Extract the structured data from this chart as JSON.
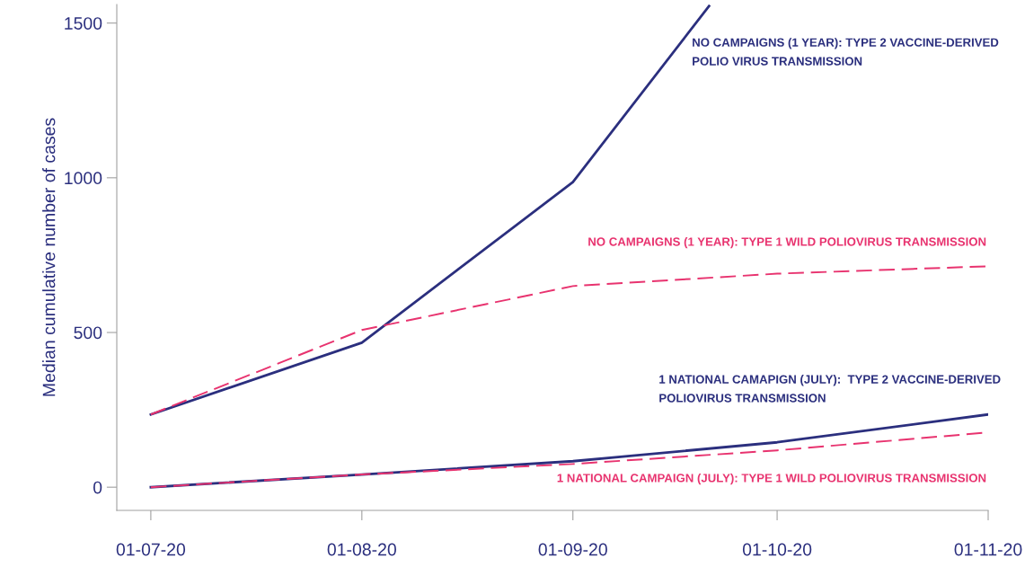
{
  "chart_data": {
    "type": "line",
    "ylabel": "Median cumulative number of cases",
    "xlim": [
      "2020-06-26",
      "2020-11-01"
    ],
    "ylim": [
      -75,
      1560
    ],
    "xticks": [
      {
        "value": "2020-07-01",
        "label": "01-07-20"
      },
      {
        "value": "2020-08-01",
        "label": "01-08-20"
      },
      {
        "value": "2020-09-01",
        "label": "01-09-20"
      },
      {
        "value": "2020-10-01",
        "label": "01-10-20"
      },
      {
        "value": "2020-11-01",
        "label": "01-11-20"
      }
    ],
    "yticks": [
      0,
      500,
      1000,
      1500
    ],
    "grid": false,
    "legend": false,
    "marker": "none",
    "series": [
      {
        "name": "NO CAMPAIGNS (1 YEAR): TYPE 2 VACCINE-DERIVED\nPOLIO VIRUS TRANSMISSION",
        "color": "#2b2f7e",
        "line_style": "solid",
        "x": [
          "2020-07-01",
          "2020-08-01",
          "2020-09-01",
          "2020-09-21"
        ],
        "values": [
          235,
          467,
          986,
          1555
        ]
      },
      {
        "name": "NO CAMPAIGNS (1 YEAR): TYPE 1 WILD POLIOVIRUS TRANSMISSION",
        "color": "#e8336f",
        "line_style": "dashed",
        "x": [
          "2020-07-01",
          "2020-08-01",
          "2020-09-01",
          "2020-10-01",
          "2020-11-01"
        ],
        "values": [
          235,
          508,
          650,
          690,
          714
        ]
      },
      {
        "name": "1 NATIONAL CAMAPIGN (JULY):  TYPE 2 VACCINE-DERIVED\nPOLIOVIRUS TRANSMISSION",
        "color": "#2b2f7e",
        "line_style": "solid",
        "x": [
          "2020-07-01",
          "2020-08-01",
          "2020-09-01",
          "2020-10-01",
          "2020-11-01"
        ],
        "values": [
          0,
          41,
          84,
          145,
          235
        ]
      },
      {
        "name": "1 NATIONAL CAMPAIGN (JULY): TYPE 1 WILD POLIOVIRUS TRANSMISSION",
        "color": "#e8336f",
        "line_style": "dashed",
        "x": [
          "2020-07-01",
          "2020-08-01",
          "2020-09-01",
          "2020-10-01",
          "2020-11-01"
        ],
        "values": [
          0,
          41,
          75,
          119,
          177
        ]
      }
    ]
  }
}
